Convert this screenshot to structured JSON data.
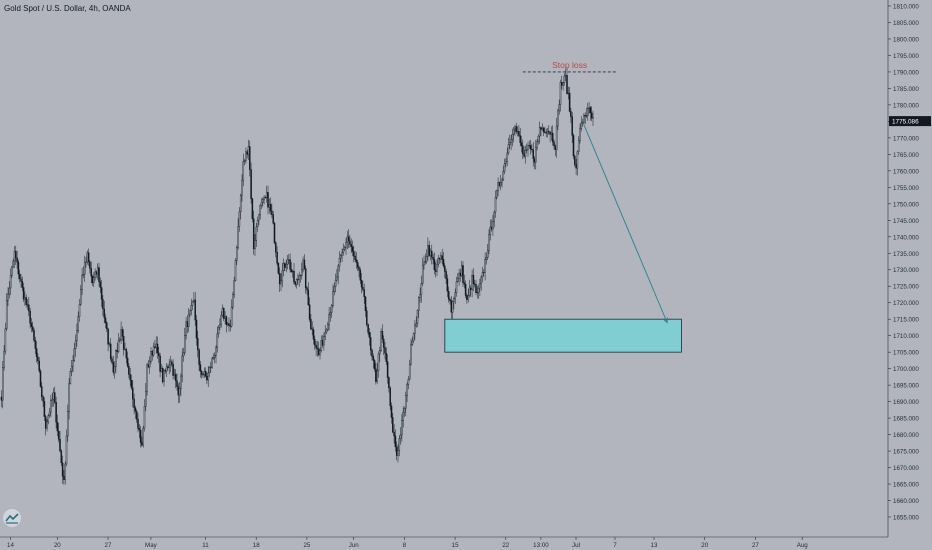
{
  "header": {
    "title": "Gold Spot / U.S. Dollar, 4h, OANDA"
  },
  "colors": {
    "background": "#b2b5be",
    "candle": "#131722",
    "axis_text": "#2a2e39",
    "zone_fill": "#80cdd2",
    "zone_border": "#1d2a2f",
    "arrow": "#2f7f88",
    "stop_line": "#2a2e39",
    "stop_text": "#b24a4a",
    "price_label_bg": "#131722",
    "price_label_text": "#ffffff"
  },
  "chart_data": {
    "type": "candlestick",
    "timeframe": "4h",
    "ylim": [
      1650,
      1812
    ],
    "y_ticks": [
      1655,
      1660,
      1665,
      1670,
      1675,
      1680,
      1685,
      1690,
      1695,
      1700,
      1705,
      1710,
      1715,
      1720,
      1725,
      1730,
      1735,
      1740,
      1745,
      1750,
      1755,
      1760,
      1765,
      1770,
      1775,
      1780,
      1785,
      1790,
      1795,
      1800,
      1805,
      1810
    ],
    "x_tick_labels": [
      "14",
      "20",
      "27",
      "May",
      "11",
      "18",
      "25",
      "Jun",
      "8",
      "15",
      "22",
      "13:00",
      "Jul",
      "7",
      "13",
      "20",
      "27",
      "Aug"
    ],
    "x_tick_index": [
      0,
      36,
      75,
      108,
      150,
      189,
      228,
      264,
      303,
      342,
      381,
      408,
      435,
      465,
      495,
      534,
      573,
      609
    ],
    "bars_total": 650,
    "last_price": "1775.086",
    "last_price_value": 1775.086,
    "price_anchors": [
      [
        0,
        1692
      ],
      [
        4,
        1720
      ],
      [
        10,
        1735
      ],
      [
        16,
        1724
      ],
      [
        22,
        1715
      ],
      [
        28,
        1701
      ],
      [
        34,
        1683
      ],
      [
        40,
        1692
      ],
      [
        45,
        1675
      ],
      [
        48,
        1665
      ],
      [
        52,
        1695
      ],
      [
        58,
        1712
      ],
      [
        62,
        1728
      ],
      [
        66,
        1734
      ],
      [
        70,
        1726
      ],
      [
        74,
        1730
      ],
      [
        80,
        1713
      ],
      [
        86,
        1700
      ],
      [
        92,
        1712
      ],
      [
        98,
        1697
      ],
      [
        104,
        1686
      ],
      [
        108,
        1676
      ],
      [
        112,
        1700
      ],
      [
        118,
        1708
      ],
      [
        124,
        1697
      ],
      [
        130,
        1703
      ],
      [
        136,
        1692
      ],
      [
        142,
        1713
      ],
      [
        148,
        1720
      ],
      [
        152,
        1700
      ],
      [
        158,
        1697
      ],
      [
        164,
        1705
      ],
      [
        170,
        1717
      ],
      [
        176,
        1712
      ],
      [
        180,
        1733
      ],
      [
        186,
        1762
      ],
      [
        190,
        1768
      ],
      [
        194,
        1737
      ],
      [
        198,
        1748
      ],
      [
        204,
        1752
      ],
      [
        208,
        1746
      ],
      [
        214,
        1727
      ],
      [
        220,
        1734
      ],
      [
        226,
        1725
      ],
      [
        232,
        1732
      ],
      [
        238,
        1713
      ],
      [
        244,
        1704
      ],
      [
        248,
        1710
      ],
      [
        254,
        1720
      ],
      [
        260,
        1732
      ],
      [
        266,
        1740
      ],
      [
        270,
        1735
      ],
      [
        276,
        1727
      ],
      [
        280,
        1718
      ],
      [
        284,
        1705
      ],
      [
        288,
        1697
      ],
      [
        292,
        1710
      ],
      [
        296,
        1702
      ],
      [
        300,
        1684
      ],
      [
        304,
        1674
      ],
      [
        308,
        1683
      ],
      [
        312,
        1694
      ],
      [
        316,
        1710
      ],
      [
        320,
        1717
      ],
      [
        324,
        1730
      ],
      [
        328,
        1737
      ],
      [
        334,
        1730
      ],
      [
        338,
        1734
      ],
      [
        342,
        1727
      ],
      [
        346,
        1718
      ],
      [
        350,
        1726
      ],
      [
        354,
        1730
      ],
      [
        358,
        1720
      ],
      [
        362,
        1727
      ],
      [
        366,
        1722
      ],
      [
        370,
        1728
      ],
      [
        374,
        1737
      ],
      [
        378,
        1746
      ],
      [
        382,
        1755
      ],
      [
        386,
        1760
      ],
      [
        390,
        1768
      ],
      [
        394,
        1774
      ],
      [
        398,
        1770
      ],
      [
        402,
        1764
      ],
      [
        406,
        1767
      ],
      [
        410,
        1764
      ],
      [
        414,
        1773
      ],
      [
        418,
        1773
      ],
      [
        422,
        1772
      ],
      [
        426,
        1768
      ],
      [
        430,
        1786
      ],
      [
        434,
        1788
      ],
      [
        438,
        1776
      ],
      [
        440,
        1766
      ],
      [
        442,
        1760
      ],
      [
        444,
        1770
      ],
      [
        448,
        1777
      ],
      [
        452,
        1778
      ],
      [
        455,
        1775
      ]
    ],
    "zone": {
      "x_start_index": 341,
      "x_end_index": 523,
      "y_low": 1705,
      "y_high": 1715
    },
    "stop_loss": {
      "label": "Stop loss",
      "y": 1790,
      "x_start_index": 401,
      "x_end_index": 473
    },
    "arrow": {
      "from_index": 448,
      "from_y": 1774,
      "to_index": 512,
      "to_y": 1714
    }
  }
}
